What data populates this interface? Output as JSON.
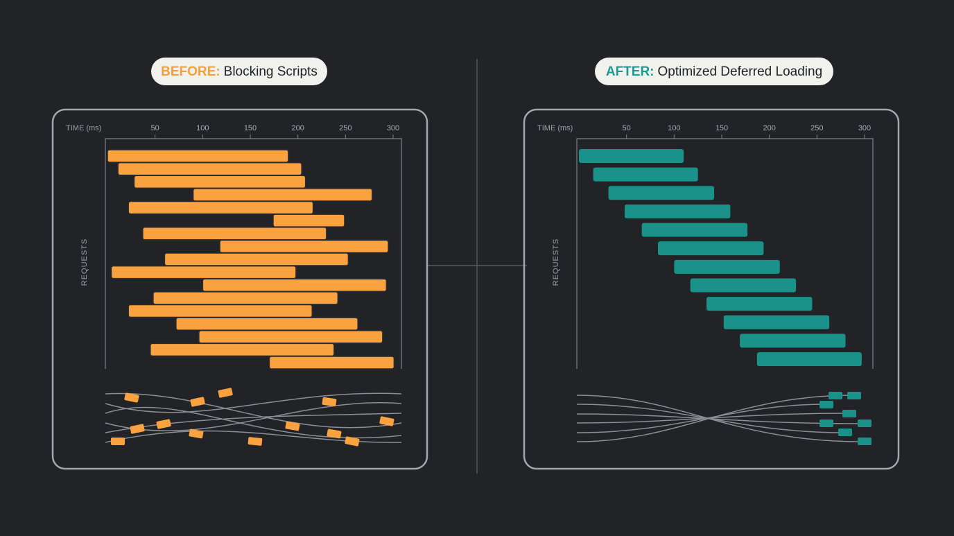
{
  "chart_data": [
    {
      "type": "range-bar",
      "title_tag": "BEFORE:",
      "title": "Blocking Scripts",
      "tag_color": "#f4a03c",
      "x_label": "TIME (ms)",
      "y_label": "REQUESTS",
      "color": "#f9a23f",
      "xlim": [
        0,
        300
      ],
      "xticks": [
        50,
        100,
        150,
        200,
        250,
        300
      ],
      "start": [
        0,
        11,
        28,
        90,
        22,
        174,
        37,
        118,
        60,
        4,
        100,
        48,
        22,
        72,
        96,
        45,
        170
      ],
      "end": [
        190,
        204,
        208,
        278,
        216,
        249,
        230,
        295,
        253,
        198,
        293,
        242,
        215,
        263,
        289,
        238,
        301
      ]
    },
    {
      "type": "range-bar",
      "title_tag": "AFTER:",
      "title": "Optimized Deferred Loading",
      "tag_color": "#1f9a91",
      "x_label": "TIME (ms)",
      "y_label": "REQUESTS",
      "color": "#1a9189",
      "xlim": [
        0,
        300
      ],
      "xticks": [
        50,
        100,
        150,
        200,
        250,
        300
      ],
      "start": [
        0,
        15,
        31,
        48,
        66,
        83,
        100,
        117,
        134,
        152,
        169,
        187
      ],
      "end": [
        110,
        125,
        142,
        159,
        177,
        194,
        211,
        228,
        245,
        263,
        280,
        297
      ]
    }
  ]
}
